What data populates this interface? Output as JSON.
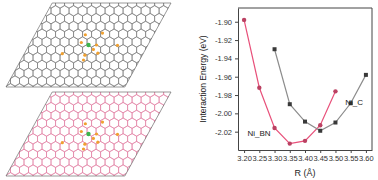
{
  "chart_data": {
    "type": "line",
    "xlabel": "R (Å)",
    "ylabel": "Interaction Energy (eV)",
    "x": [
      3.2,
      3.25,
      3.3,
      3.35,
      3.4,
      3.45,
      3.5,
      3.55,
      3.6
    ],
    "xlim": [
      3.18,
      3.62
    ],
    "ylim": [
      -2.04,
      -1.885
    ],
    "xticks": [
      {
        "value": 3.2,
        "label": "3.20"
      },
      {
        "value": 3.25,
        "label": "3.25"
      },
      {
        "value": 3.3,
        "label": "3.30"
      },
      {
        "value": 3.35,
        "label": "3.35"
      },
      {
        "value": 3.4,
        "label": "3.40"
      },
      {
        "value": 3.45,
        "label": "3.45"
      },
      {
        "value": 3.5,
        "label": "3.50"
      },
      {
        "value": 3.55,
        "label": "3.55"
      },
      {
        "value": 3.6,
        "label": "3.60"
      }
    ],
    "yticks": [
      {
        "value": -2.02,
        "label": "-2.02"
      },
      {
        "value": -2.0,
        "label": "-2.00"
      },
      {
        "value": -1.98,
        "label": "-1.98"
      },
      {
        "value": -1.96,
        "label": "-1.96"
      },
      {
        "value": -1.94,
        "label": "-1.94"
      },
      {
        "value": -1.92,
        "label": "-1.92"
      },
      {
        "value": -1.9,
        "label": "-1.90"
      }
    ],
    "series": [
      {
        "name": "Ni_BN",
        "color": "#e8507a",
        "marker": "circle",
        "values": [
          -1.898,
          -1.972,
          -2.016,
          -2.033,
          -2.03,
          -2.013,
          -1.976,
          null,
          null
        ]
      },
      {
        "name": "Ni_C",
        "color": "#8c8c8c",
        "marker": "square",
        "values": [
          null,
          null,
          -1.93,
          -1.99,
          -2.009,
          -2.019,
          -2.01,
          -1.989,
          -1.958
        ]
      }
    ]
  }
}
